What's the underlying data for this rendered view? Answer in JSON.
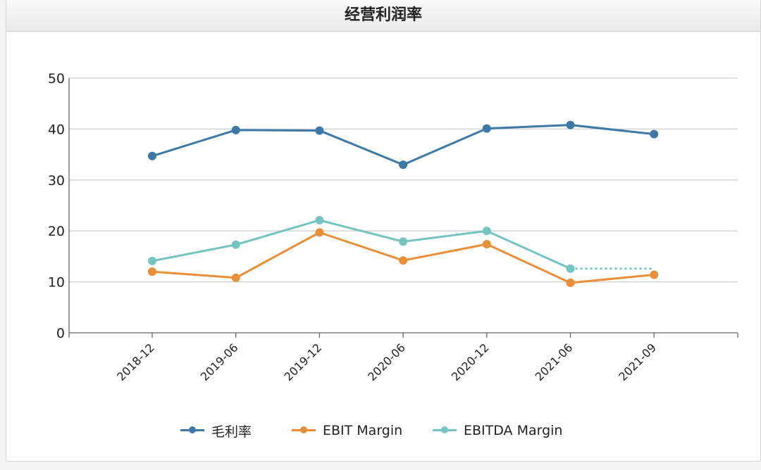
{
  "header": {
    "title": "经营利润率"
  },
  "chart_data": {
    "type": "line",
    "title": "经营利润率",
    "xlabel": "",
    "ylabel": "",
    "categories": [
      "2018-12",
      "2019-06",
      "2019-12",
      "2020-06",
      "2020-12",
      "2021-06",
      "2021-09"
    ],
    "ylim": [
      0,
      50
    ],
    "yticks": [
      0,
      10,
      20,
      30,
      40,
      50
    ],
    "grid": true,
    "legend_position": "bottom",
    "series": [
      {
        "name": "毛利率",
        "color": "#3d79a7",
        "values": [
          34.7,
          39.8,
          39.7,
          33.0,
          40.1,
          40.8,
          39.0
        ]
      },
      {
        "name": "EBIT Margin",
        "color": "#eb8f36",
        "values": [
          12.0,
          10.8,
          19.7,
          14.2,
          17.4,
          9.8,
          11.4
        ]
      },
      {
        "name": "EBITDA Margin",
        "color": "#74c4c0",
        "values": [
          14.1,
          17.3,
          22.1,
          17.9,
          20.0,
          12.6,
          12.6
        ],
        "dotted_last_segment": true
      }
    ]
  }
}
